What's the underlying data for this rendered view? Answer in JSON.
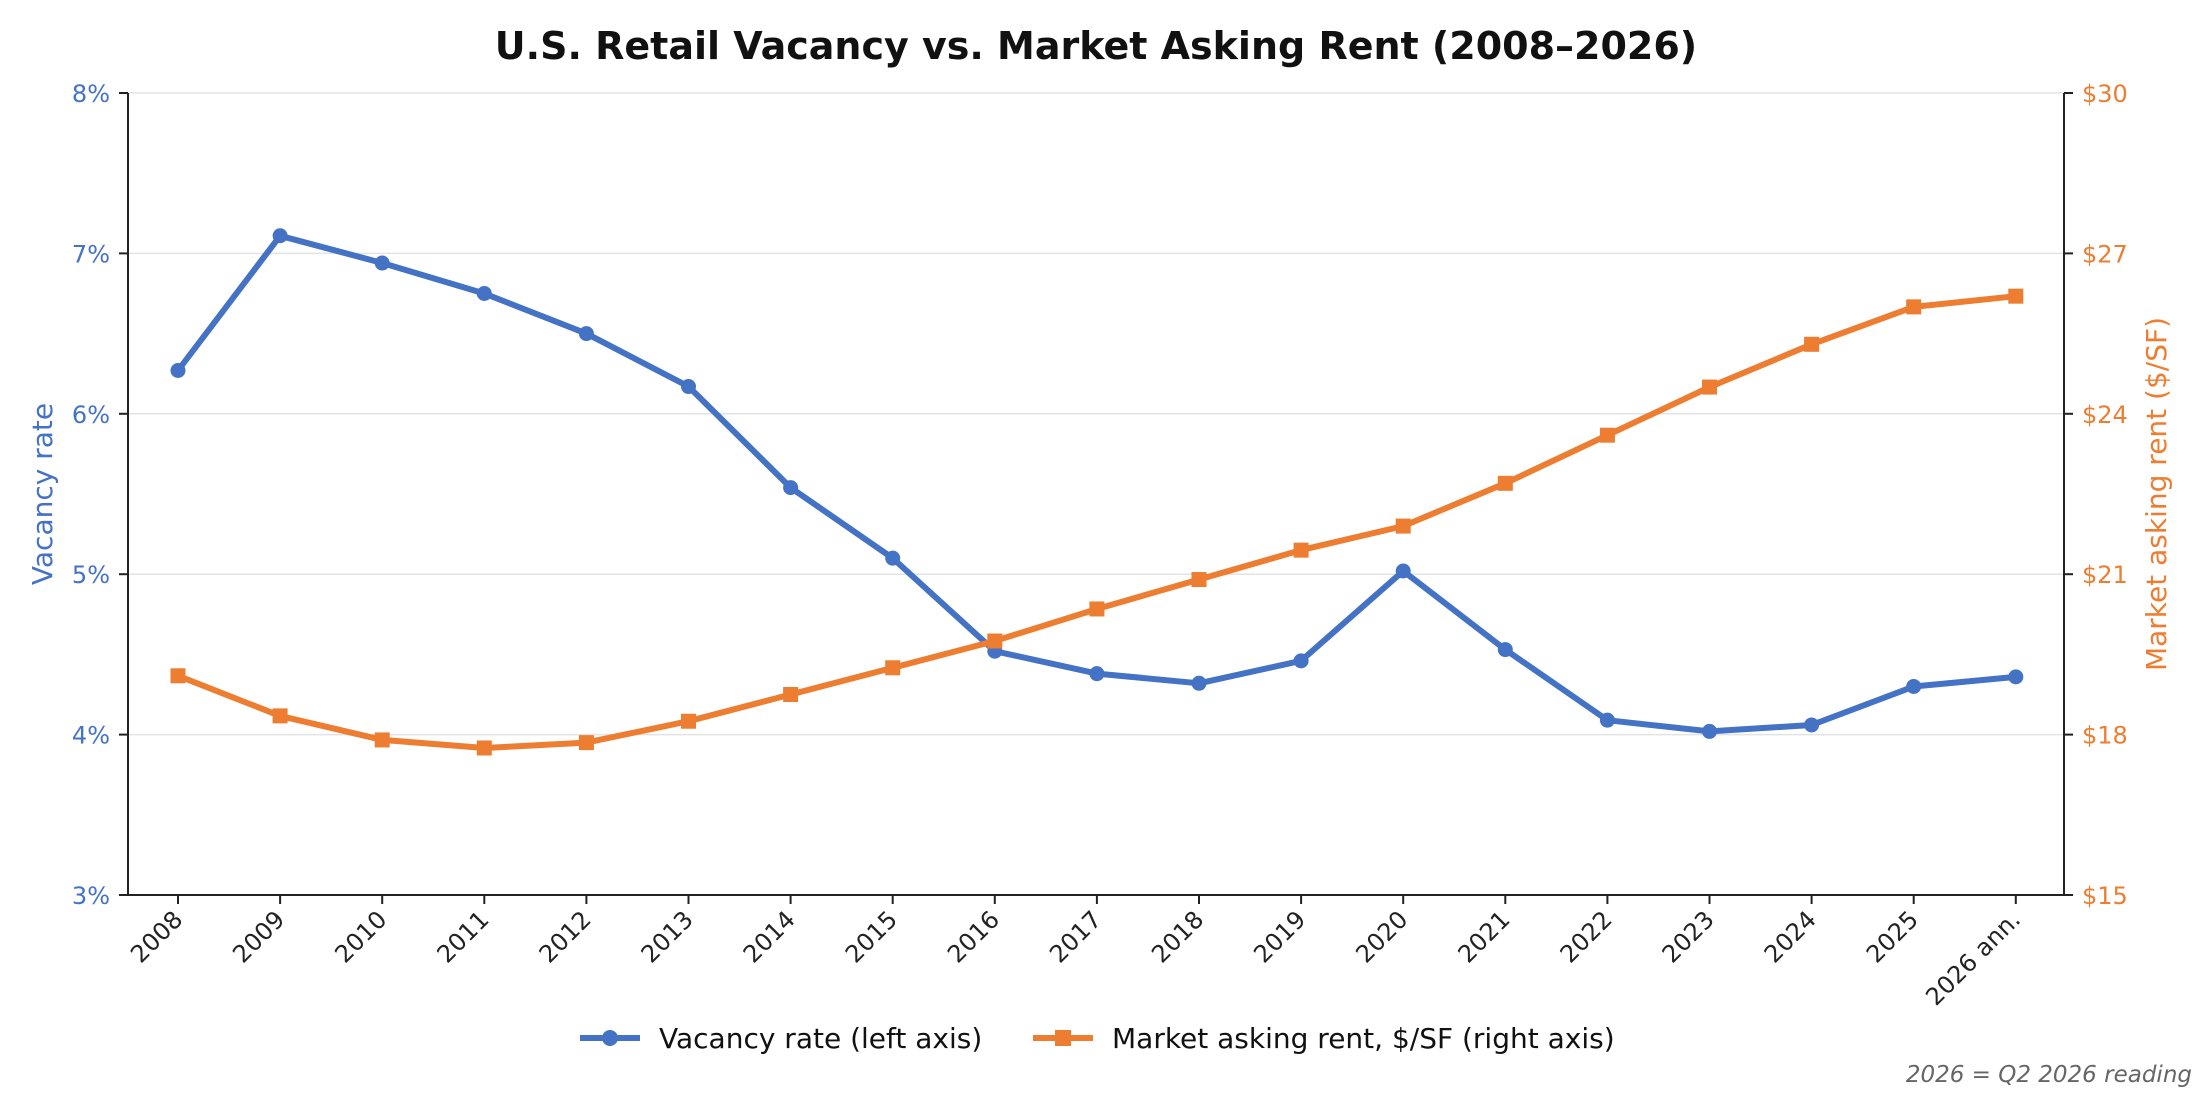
{
  "chart_data": {
    "type": "line",
    "title": "U.S. Retail Vacancy vs. Market Asking Rent (2008–2026)",
    "categories": [
      "2008",
      "2009",
      "2010",
      "2011",
      "2012",
      "2013",
      "2014",
      "2015",
      "2016",
      "2017",
      "2018",
      "2019",
      "2020",
      "2021",
      "2022",
      "2023",
      "2024",
      "2025",
      "2026 ann."
    ],
    "y_left": {
      "label": "Vacancy rate",
      "range": [
        3,
        8
      ],
      "ticks": [
        3,
        4,
        5,
        6,
        7,
        8
      ],
      "tick_labels": [
        "3%",
        "4%",
        "5%",
        "6%",
        "7%",
        "8%"
      ],
      "color": "#4472C4"
    },
    "y_right": {
      "label": "Market asking rent ($/SF)",
      "range": [
        15,
        30
      ],
      "ticks": [
        15,
        18,
        21,
        24,
        27,
        30
      ],
      "tick_labels": [
        "$15",
        "$18",
        "$21",
        "$24",
        "$27",
        "$30"
      ],
      "color": "#ED7D31"
    },
    "series": [
      {
        "name": "Vacancy rate (left axis)",
        "axis": "left",
        "marker": "circle",
        "color": "#4472C4",
        "values": [
          6.27,
          7.11,
          6.94,
          6.75,
          6.5,
          6.17,
          5.54,
          5.1,
          4.52,
          4.38,
          4.32,
          4.46,
          5.02,
          4.53,
          4.09,
          4.02,
          4.06,
          4.3,
          4.36
        ]
      },
      {
        "name": "Market asking rent, $/SF (right axis)",
        "axis": "right",
        "marker": "square",
        "color": "#ED7D31",
        "values": [
          19.1,
          18.35,
          17.9,
          17.75,
          17.85,
          18.25,
          18.75,
          19.25,
          19.75,
          20.35,
          20.9,
          21.45,
          21.9,
          22.7,
          23.6,
          24.5,
          25.3,
          26.0,
          26.2
        ]
      }
    ],
    "grid": true,
    "legend": "bottom-center",
    "footnote": "2026 = Q2 2026 reading"
  }
}
